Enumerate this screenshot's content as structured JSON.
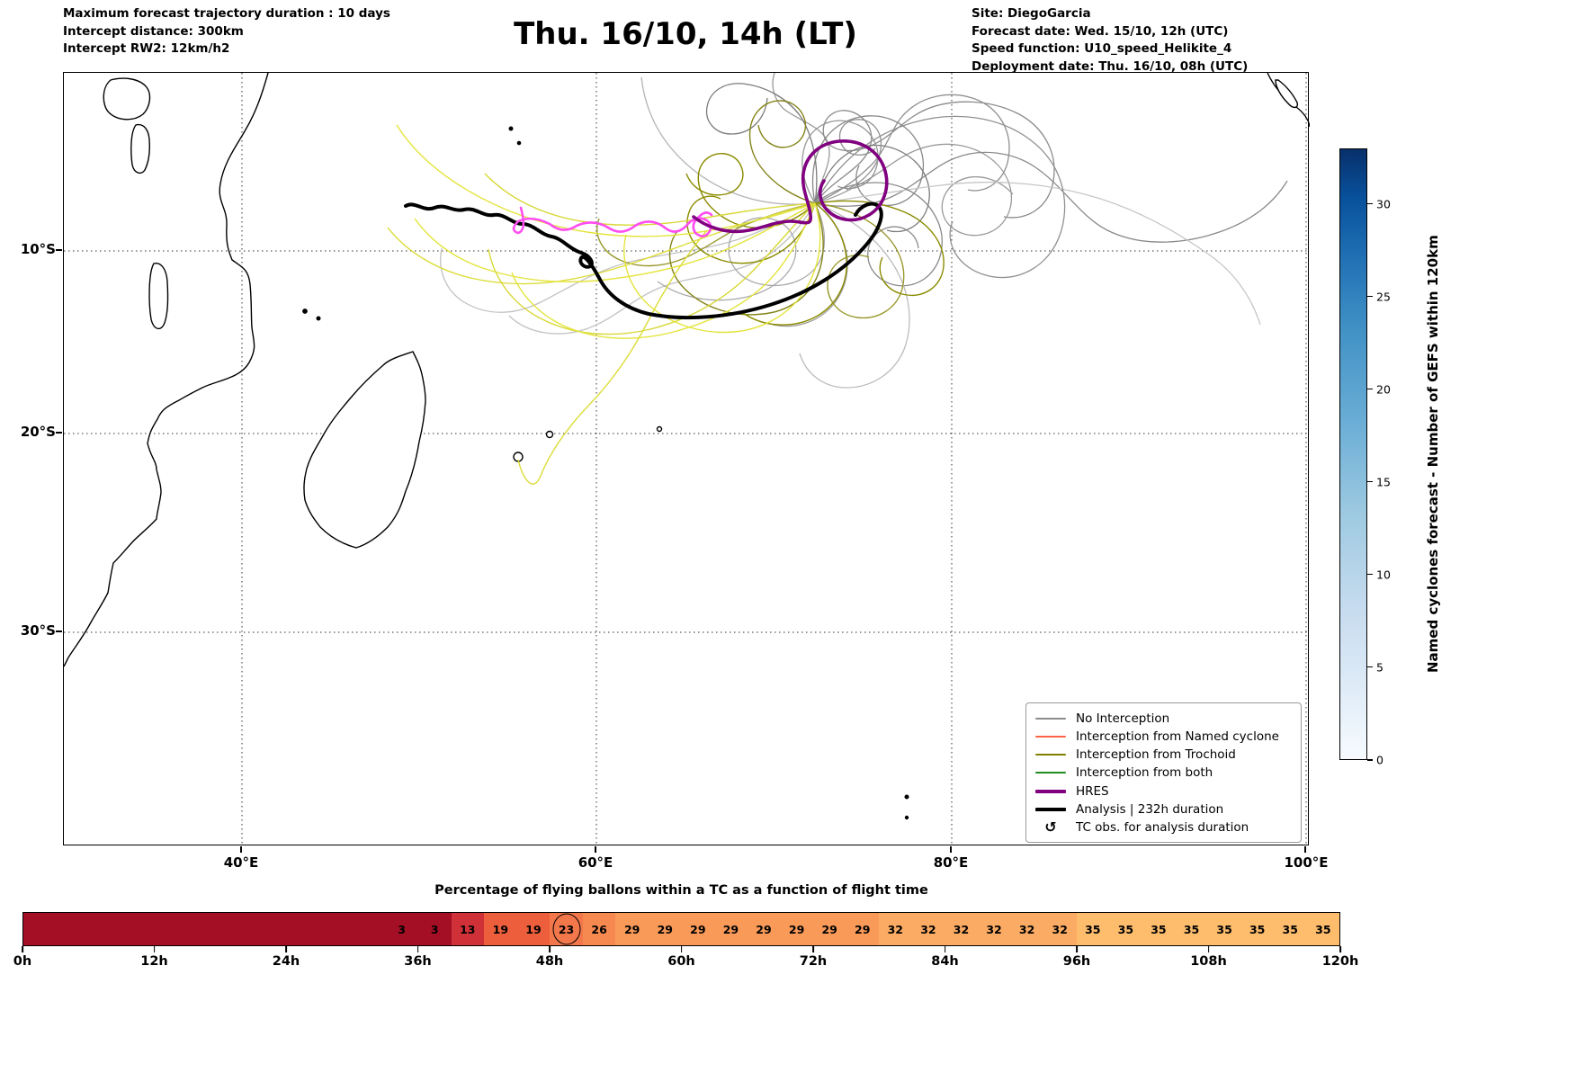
{
  "header": {
    "left_lines": [
      "Maximum forecast trajectory duration : 10 days",
      "Intercept distance: 300km",
      "Intercept RW2: 12km/h2"
    ],
    "title": "Thu. 16/10, 14h (LT)",
    "right_lines": [
      "Site: DiegoGarcia",
      "Forecast date: Wed. 15/10, 12h (UTC)",
      "Speed function: U10_speed_Helikite_4",
      "Deployment date: Thu. 16/10, 08h (UTC)"
    ]
  },
  "map": {
    "lat_ticks": [
      "10°S",
      "20°S",
      "30°S"
    ],
    "lon_ticks": [
      "40°E",
      "60°E",
      "80°E",
      "100°E"
    ]
  },
  "legend": {
    "items": [
      {
        "type": "line",
        "label": "No Interception",
        "color": "#8c8c8c",
        "weight": 2
      },
      {
        "type": "line",
        "label": "Interception from Named cyclone",
        "color": "#ff6347",
        "weight": 2
      },
      {
        "type": "line",
        "label": "Interception from Trochoid",
        "color": "#808000",
        "weight": 2
      },
      {
        "type": "line",
        "label": "Interception from both",
        "color": "#228b22",
        "weight": 2
      },
      {
        "type": "line",
        "label": "HRES",
        "color": "#800080",
        "weight": 4
      },
      {
        "type": "line",
        "label": "Analysis | 232h duration",
        "color": "#000000",
        "weight": 4
      },
      {
        "type": "symbol",
        "label": "TC obs. for analysis duration",
        "symbol": "↺"
      }
    ]
  },
  "colorbar": {
    "label": "Named cyclones forecast - Number of GEFS within 120km",
    "min": 0,
    "max": 33,
    "ticks": [
      0,
      5,
      10,
      15,
      20,
      25,
      30
    ],
    "color_low": "#f7fbff",
    "color_high": "#08306b"
  },
  "timeline": {
    "title": "Percentage of flying ballons within a TC as a function of flight time",
    "axis_ticks": [
      "0h",
      "12h",
      "24h",
      "36h",
      "48h",
      "60h",
      "72h",
      "84h",
      "96h",
      "108h",
      "120h"
    ],
    "cells": [
      {
        "label": "",
        "color": "#a50f26"
      },
      {
        "label": "",
        "color": "#a50f26"
      },
      {
        "label": "",
        "color": "#a50f26"
      },
      {
        "label": "",
        "color": "#a50f26"
      },
      {
        "label": "",
        "color": "#a50f26"
      },
      {
        "label": "",
        "color": "#a50f26"
      },
      {
        "label": "",
        "color": "#a50f26"
      },
      {
        "label": "",
        "color": "#a50f26"
      },
      {
        "label": "",
        "color": "#a50f26"
      },
      {
        "label": "",
        "color": "#a50f26"
      },
      {
        "label": "",
        "color": "#a50f26"
      },
      {
        "label": "3",
        "color": "#a50f26"
      },
      {
        "label": "3",
        "color": "#a50f26"
      },
      {
        "label": "13",
        "color": "#d03038"
      },
      {
        "label": "19",
        "color": "#ed5f3c"
      },
      {
        "label": "19",
        "color": "#ed5f3c"
      },
      {
        "label": "23",
        "color": "#f2774b",
        "circled": true
      },
      {
        "label": "26",
        "color": "#f68950"
      },
      {
        "label": "29",
        "color": "#f99a59"
      },
      {
        "label": "29",
        "color": "#f99a59"
      },
      {
        "label": "29",
        "color": "#f99a59"
      },
      {
        "label": "29",
        "color": "#f99a59"
      },
      {
        "label": "29",
        "color": "#f99a59"
      },
      {
        "label": "29",
        "color": "#f99a59"
      },
      {
        "label": "29",
        "color": "#f99a59"
      },
      {
        "label": "29",
        "color": "#f99a59"
      },
      {
        "label": "32",
        "color": "#fbab63"
      },
      {
        "label": "32",
        "color": "#fbab63"
      },
      {
        "label": "32",
        "color": "#fbab63"
      },
      {
        "label": "32",
        "color": "#fbab63"
      },
      {
        "label": "32",
        "color": "#fbab63"
      },
      {
        "label": "32",
        "color": "#fbab63"
      },
      {
        "label": "35",
        "color": "#fdbd6d"
      },
      {
        "label": "35",
        "color": "#fdbd6d"
      },
      {
        "label": "35",
        "color": "#fdbd6d"
      },
      {
        "label": "35",
        "color": "#fdbd6d"
      },
      {
        "label": "35",
        "color": "#fdbd6d"
      },
      {
        "label": "35",
        "color": "#fdbd6d"
      },
      {
        "label": "35",
        "color": "#fdbd6d"
      },
      {
        "label": "35",
        "color": "#fdbd6d"
      }
    ]
  },
  "chart_data": {
    "type": "heatmap",
    "title": "Percentage of flying ballons within a TC as a function of flight time",
    "xlabel": "flight time",
    "bin_hours": 3,
    "x_range_hours": [
      0,
      120
    ],
    "x_ticks": [
      "0h",
      "12h",
      "24h",
      "36h",
      "48h",
      "60h",
      "72h",
      "84h",
      "96h",
      "108h",
      "120h"
    ],
    "values_percent": [
      null,
      null,
      null,
      null,
      null,
      null,
      null,
      null,
      null,
      null,
      null,
      3,
      3,
      13,
      19,
      19,
      23,
      26,
      29,
      29,
      29,
      29,
      29,
      29,
      29,
      29,
      32,
      32,
      32,
      32,
      32,
      32,
      35,
      35,
      35,
      35,
      35,
      35,
      35,
      35
    ],
    "highlighted_value": 23,
    "map_axes": {
      "lon_ticks_deg_e": [
        40,
        60,
        80,
        100
      ],
      "lat_ticks_deg_s": [
        10,
        20,
        30
      ]
    },
    "colorbar": {
      "label": "Named cyclones forecast - Number of GEFS within 120km",
      "range": [
        0,
        33
      ],
      "ticks": [
        0,
        5,
        10,
        15,
        20,
        25,
        30
      ],
      "colormap": "Blues"
    }
  }
}
